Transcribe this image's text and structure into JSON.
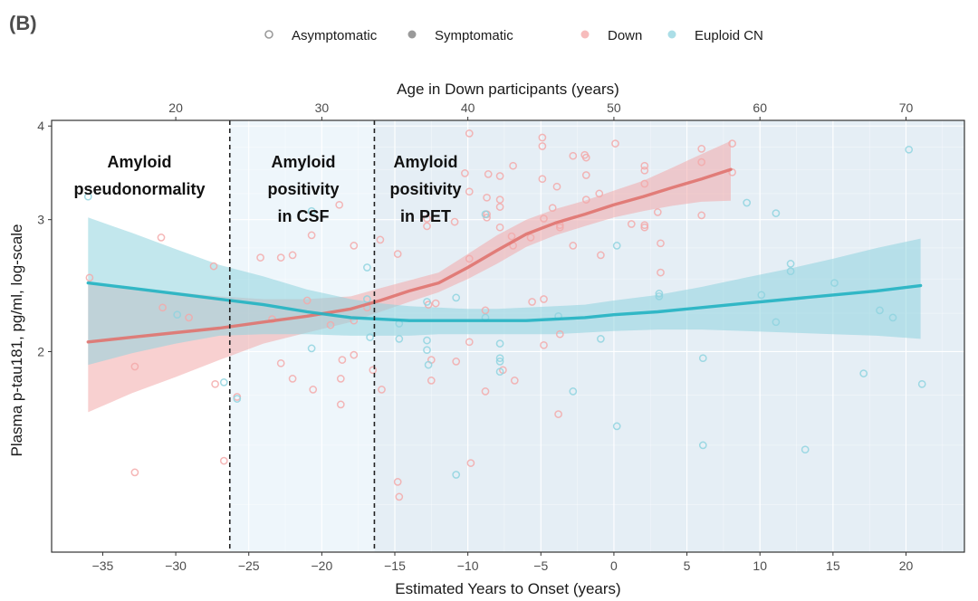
{
  "panel_label": "(B)",
  "legend": {
    "shape_items": [
      {
        "label": "Asymptomatic",
        "marker": "open-circle",
        "color": "#9a9a9a"
      },
      {
        "label": "Symptomatic",
        "marker": "filled-circle",
        "color": "#9a9a9a"
      }
    ],
    "color_items": [
      {
        "label": "Down",
        "color": "#f4a6a6"
      },
      {
        "label": "Euploid CN",
        "color": "#8fd3df"
      }
    ]
  },
  "regions": [
    {
      "label_lines": [
        "Amyloid",
        "pseudonormality"
      ],
      "x_start": -38.5,
      "x_end": -26.3,
      "fill": "#ffffff"
    },
    {
      "label_lines": [
        "Amyloid",
        "positivity",
        "in CSF"
      ],
      "x_start": -26.3,
      "x_end": -16.4,
      "fill": "#eef6fb"
    },
    {
      "label_lines": [
        "Amyloid",
        "positivity",
        "in PET"
      ],
      "x_start": -16.4,
      "x_end": 24.0,
      "fill": "#e5eef5"
    }
  ],
  "chart_data": {
    "type": "scatter",
    "title": "",
    "xlabel": "Estimated Years to Onset (years)",
    "ylabel": "Plasma p-tau181, pg/ml, log-scale",
    "top_xlabel": "Age in Down participants (years)",
    "xlim": [
      -38.5,
      24
    ],
    "ylim_log": [
      1.08,
      4.07
    ],
    "x_ticks": [
      -35,
      -30,
      -25,
      -20,
      -15,
      -10,
      -5,
      0,
      5,
      10,
      15,
      20
    ],
    "x_tick_labels": [
      "−35",
      "−30",
      "−25",
      "−20",
      "−15",
      "−10",
      "−5",
      "0",
      "5",
      "10",
      "15",
      "20"
    ],
    "highlight_tick": {
      "value": 0,
      "color": "#e8343a"
    },
    "y_ticks": [
      2,
      3,
      4
    ],
    "y_tick_labels": [
      "2",
      "3",
      "4"
    ],
    "top_ticks": [
      20,
      30,
      40,
      50,
      60,
      70
    ],
    "top_tick_labels": [
      "20",
      "30",
      "40",
      "50",
      "60",
      "70"
    ],
    "top_axis_offset": -50,
    "vlines": [
      -26.3,
      -16.4
    ],
    "grid": true,
    "series": [
      {
        "name": "Down",
        "color": "#e0736f",
        "band_color": "#f3a9a9",
        "fit_x": [
          -36,
          -33,
          -30,
          -27,
          -24,
          -21,
          -18,
          -16,
          -14,
          -12,
          -10,
          -8,
          -6,
          -4,
          -2,
          0,
          2,
          4,
          6,
          8
        ],
        "fit_y": [
          2.06,
          2.09,
          2.12,
          2.15,
          2.19,
          2.23,
          2.28,
          2.34,
          2.41,
          2.47,
          2.59,
          2.73,
          2.87,
          2.97,
          3.05,
          3.14,
          3.22,
          3.31,
          3.4,
          3.5
        ],
        "band_lo": [
          1.66,
          1.76,
          1.85,
          1.95,
          2.05,
          2.12,
          2.19,
          2.26,
          2.33,
          2.4,
          2.5,
          2.62,
          2.76,
          2.86,
          2.94,
          3.02,
          3.08,
          3.13,
          3.17,
          3.18
        ],
        "band_hi": [
          2.47,
          2.43,
          2.4,
          2.37,
          2.35,
          2.35,
          2.37,
          2.43,
          2.49,
          2.55,
          2.7,
          2.86,
          3.0,
          3.1,
          3.18,
          3.28,
          3.38,
          3.52,
          3.67,
          3.82
        ],
        "points": [
          {
            "x": -35.9,
            "y": 2.51
          },
          {
            "x": -32.8,
            "y": 1.91
          },
          {
            "x": -32.8,
            "y": 1.38
          },
          {
            "x": -31.0,
            "y": 2.84
          },
          {
            "x": -30.9,
            "y": 2.29
          },
          {
            "x": -29.1,
            "y": 2.22
          },
          {
            "x": -27.4,
            "y": 2.6
          },
          {
            "x": -27.3,
            "y": 1.81
          },
          {
            "x": -26.7,
            "y": 1.43
          },
          {
            "x": -25.8,
            "y": 1.74
          },
          {
            "x": -24.2,
            "y": 2.67
          },
          {
            "x": -23.4,
            "y": 2.21
          },
          {
            "x": -22.8,
            "y": 2.67
          },
          {
            "x": -22.8,
            "y": 1.93
          },
          {
            "x": -22.0,
            "y": 2.69
          },
          {
            "x": -22.0,
            "y": 1.84
          },
          {
            "x": -21.0,
            "y": 2.34
          },
          {
            "x": -20.7,
            "y": 2.86
          },
          {
            "x": -20.6,
            "y": 1.78
          },
          {
            "x": -19.4,
            "y": 2.17
          },
          {
            "x": -18.8,
            "y": 3.14
          },
          {
            "x": -18.6,
            "y": 1.95
          },
          {
            "x": -18.7,
            "y": 1.84
          },
          {
            "x": -18.7,
            "y": 1.7
          },
          {
            "x": -17.8,
            "y": 2.77
          },
          {
            "x": -17.8,
            "y": 2.2
          },
          {
            "x": -17.8,
            "y": 1.98
          },
          {
            "x": -16.9,
            "y": 2.29
          },
          {
            "x": -16.5,
            "y": 1.89
          },
          {
            "x": -16.0,
            "y": 2.82
          },
          {
            "x": -15.9,
            "y": 1.78
          },
          {
            "x": -14.8,
            "y": 2.7
          },
          {
            "x": -14.8,
            "y": 1.34
          },
          {
            "x": -14.7,
            "y": 1.28
          },
          {
            "x": -12.8,
            "y": 3.01
          },
          {
            "x": -12.8,
            "y": 2.94
          },
          {
            "x": -12.7,
            "y": 2.31
          },
          {
            "x": -12.5,
            "y": 1.95
          },
          {
            "x": -12.5,
            "y": 1.83
          },
          {
            "x": -12.2,
            "y": 2.32
          },
          {
            "x": -10.8,
            "y": 1.94
          },
          {
            "x": -10.9,
            "y": 2.98
          },
          {
            "x": -10.2,
            "y": 3.46
          },
          {
            "x": -9.9,
            "y": 3.91
          },
          {
            "x": -9.9,
            "y": 3.27
          },
          {
            "x": -9.9,
            "y": 2.66
          },
          {
            "x": -9.9,
            "y": 2.06
          },
          {
            "x": -9.8,
            "y": 1.42
          },
          {
            "x": -8.7,
            "y": 3.05
          },
          {
            "x": -8.7,
            "y": 3.02
          },
          {
            "x": -8.8,
            "y": 2.27
          },
          {
            "x": -8.8,
            "y": 1.77
          },
          {
            "x": -8.6,
            "y": 3.45
          },
          {
            "x": -8.7,
            "y": 3.21
          },
          {
            "x": -7.8,
            "y": 3.43
          },
          {
            "x": -7.8,
            "y": 3.19
          },
          {
            "x": -7.8,
            "y": 3.12
          },
          {
            "x": -7.8,
            "y": 2.93
          },
          {
            "x": -7.6,
            "y": 1.89
          },
          {
            "x": -7.0,
            "y": 2.85
          },
          {
            "x": -6.9,
            "y": 3.54
          },
          {
            "x": -6.9,
            "y": 2.77
          },
          {
            "x": -6.8,
            "y": 1.83
          },
          {
            "x": -5.7,
            "y": 2.84
          },
          {
            "x": -5.6,
            "y": 2.33
          },
          {
            "x": -4.9,
            "y": 3.86
          },
          {
            "x": -4.9,
            "y": 3.76
          },
          {
            "x": -4.9,
            "y": 3.4
          },
          {
            "x": -4.8,
            "y": 3.01
          },
          {
            "x": -4.8,
            "y": 2.35
          },
          {
            "x": -4.8,
            "y": 2.04
          },
          {
            "x": -4.2,
            "y": 3.11
          },
          {
            "x": -3.9,
            "y": 3.32
          },
          {
            "x": -3.7,
            "y": 2.95
          },
          {
            "x": -3.7,
            "y": 2.93
          },
          {
            "x": -3.7,
            "y": 2.11
          },
          {
            "x": -3.8,
            "y": 1.65
          },
          {
            "x": -2.8,
            "y": 3.65
          },
          {
            "x": -2.8,
            "y": 2.77
          },
          {
            "x": -2.0,
            "y": 3.66
          },
          {
            "x": -1.9,
            "y": 3.63
          },
          {
            "x": -1.9,
            "y": 3.44
          },
          {
            "x": -1.9,
            "y": 3.19
          },
          {
            "x": -1.0,
            "y": 3.25
          },
          {
            "x": -0.9,
            "y": 2.69
          },
          {
            "x": 0.1,
            "y": 3.79
          },
          {
            "x": 1.2,
            "y": 2.96
          },
          {
            "x": 2.1,
            "y": 3.54
          },
          {
            "x": 2.1,
            "y": 3.35
          },
          {
            "x": 2.1,
            "y": 2.95
          },
          {
            "x": 2.1,
            "y": 2.93
          },
          {
            "x": 2.1,
            "y": 3.49
          },
          {
            "x": 3.0,
            "y": 3.07
          },
          {
            "x": 3.2,
            "y": 2.79
          },
          {
            "x": 3.2,
            "y": 2.55
          },
          {
            "x": 6.0,
            "y": 3.73
          },
          {
            "x": 6.0,
            "y": 3.58
          },
          {
            "x": 6.0,
            "y": 3.04
          },
          {
            "x": 8.1,
            "y": 3.79
          },
          {
            "x": 8.1,
            "y": 3.47
          }
        ]
      },
      {
        "name": "Euploid CN",
        "color": "#22b3c2",
        "band_color": "#8fd3df",
        "fit_x": [
          -36,
          -33,
          -30,
          -27,
          -24,
          -21,
          -18,
          -16,
          -14,
          -12,
          -10,
          -8,
          -6,
          -4,
          -2,
          0,
          3,
          6,
          9,
          12,
          15,
          18,
          21
        ],
        "fit_y": [
          2.47,
          2.43,
          2.39,
          2.35,
          2.31,
          2.26,
          2.22,
          2.21,
          2.2,
          2.2,
          2.2,
          2.2,
          2.2,
          2.21,
          2.22,
          2.24,
          2.26,
          2.29,
          2.32,
          2.35,
          2.38,
          2.41,
          2.45
        ],
        "band_lo": [
          1.92,
          1.99,
          2.05,
          2.1,
          2.11,
          2.11,
          2.1,
          2.1,
          2.1,
          2.11,
          2.11,
          2.11,
          2.11,
          2.11,
          2.12,
          2.13,
          2.14,
          2.14,
          2.13,
          2.12,
          2.11,
          2.1,
          2.08
        ],
        "band_hi": [
          3.02,
          2.88,
          2.74,
          2.61,
          2.52,
          2.42,
          2.35,
          2.32,
          2.3,
          2.29,
          2.28,
          2.28,
          2.29,
          2.3,
          2.31,
          2.34,
          2.38,
          2.44,
          2.51,
          2.58,
          2.66,
          2.75,
          2.83
        ],
        "points": [
          {
            "x": -36.0,
            "y": 3.22
          },
          {
            "x": -29.9,
            "y": 2.24
          },
          {
            "x": -26.7,
            "y": 1.82
          },
          {
            "x": -25.8,
            "y": 1.73
          },
          {
            "x": -20.7,
            "y": 3.08
          },
          {
            "x": -20.7,
            "y": 2.02
          },
          {
            "x": -16.9,
            "y": 2.59
          },
          {
            "x": -16.9,
            "y": 2.35
          },
          {
            "x": -16.7,
            "y": 2.09
          },
          {
            "x": -14.7,
            "y": 2.18
          },
          {
            "x": -14.7,
            "y": 2.08
          },
          {
            "x": -12.8,
            "y": 2.33
          },
          {
            "x": -12.8,
            "y": 2.07
          },
          {
            "x": -12.8,
            "y": 2.01
          },
          {
            "x": -12.7,
            "y": 1.92
          },
          {
            "x": -10.8,
            "y": 2.36
          },
          {
            "x": -10.8,
            "y": 1.37
          },
          {
            "x": -8.8,
            "y": 3.05
          },
          {
            "x": -8.8,
            "y": 2.22
          },
          {
            "x": -7.8,
            "y": 2.05
          },
          {
            "x": -7.8,
            "y": 1.96
          },
          {
            "x": -7.8,
            "y": 1.94
          },
          {
            "x": -7.8,
            "y": 1.88
          },
          {
            "x": -3.8,
            "y": 2.23
          },
          {
            "x": -2.8,
            "y": 1.77
          },
          {
            "x": -0.9,
            "y": 2.08
          },
          {
            "x": 0.2,
            "y": 2.77
          },
          {
            "x": 0.2,
            "y": 1.59
          },
          {
            "x": 3.1,
            "y": 2.39
          },
          {
            "x": 3.1,
            "y": 2.37
          },
          {
            "x": 6.1,
            "y": 1.96
          },
          {
            "x": 6.1,
            "y": 1.5
          },
          {
            "x": 9.1,
            "y": 3.16
          },
          {
            "x": 10.1,
            "y": 2.38
          },
          {
            "x": 11.1,
            "y": 3.06
          },
          {
            "x": 11.1,
            "y": 2.19
          },
          {
            "x": 12.1,
            "y": 2.62
          },
          {
            "x": 12.1,
            "y": 2.56
          },
          {
            "x": 13.1,
            "y": 1.48
          },
          {
            "x": 15.1,
            "y": 2.47
          },
          {
            "x": 17.1,
            "y": 1.87
          },
          {
            "x": 18.2,
            "y": 2.27
          },
          {
            "x": 19.1,
            "y": 2.22
          },
          {
            "x": 20.2,
            "y": 3.72
          },
          {
            "x": 21.1,
            "y": 1.81
          }
        ]
      }
    ]
  }
}
